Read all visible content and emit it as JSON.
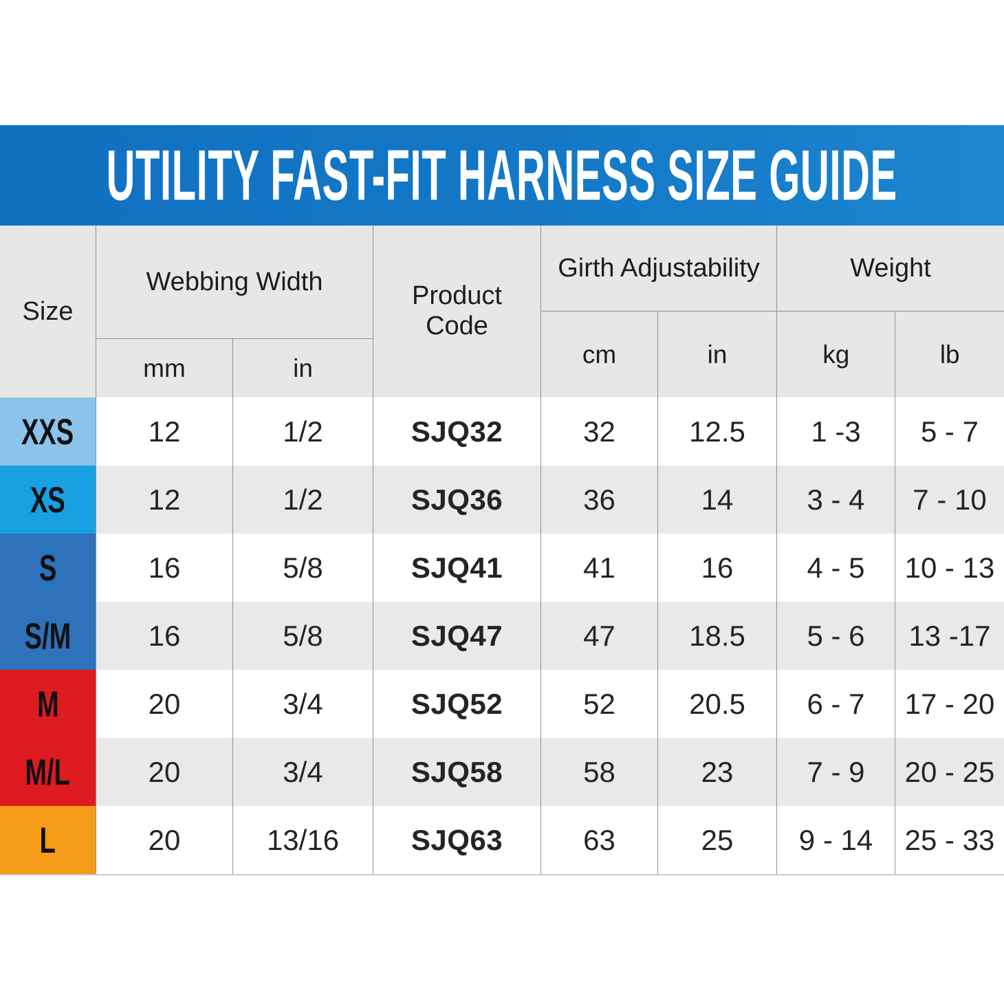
{
  "title": "UTILITY FAST-FIT HARNESS SIZE GUIDE",
  "colors": {
    "bar_gradient_left": "#1171c1",
    "bar_gradient_right": "#1c86cf",
    "size_xxs": "#8cc3ea",
    "size_xs": "#18a0e2",
    "size_s": "#2d72ba",
    "size_sm": "#2d72ba",
    "size_m": "#dd1b21",
    "size_ml": "#dd1b21",
    "size_l": "#f49c18"
  },
  "table": {
    "headers": {
      "size": "Size",
      "webbing_width": "Webbing Width",
      "product_code": "Product Code",
      "girth_adjustability": "Girth Adjustability",
      "weight": "Weight",
      "unit_mm": "mm",
      "unit_in_webbing": "in",
      "unit_cm": "cm",
      "unit_in_girth": "in",
      "unit_kg": "kg",
      "unit_lb": "lb"
    },
    "rows": [
      {
        "size": "XXS",
        "mm": "12",
        "in": "1/2",
        "code": "SJQ32",
        "cm": "32",
        "girth_in": "12.5",
        "kg": "1 -3",
        "lb": "5 - 7"
      },
      {
        "size": "XS",
        "mm": "12",
        "in": "1/2",
        "code": "SJQ36",
        "cm": "36",
        "girth_in": "14",
        "kg": "3 - 4",
        "lb": "7 - 10"
      },
      {
        "size": "S",
        "mm": "16",
        "in": "5/8",
        "code": "SJQ41",
        "cm": "41",
        "girth_in": "16",
        "kg": "4 - 5",
        "lb": "10 - 13"
      },
      {
        "size": "S/M",
        "mm": "16",
        "in": "5/8",
        "code": "SJQ47",
        "cm": "47",
        "girth_in": "18.5",
        "kg": "5 - 6",
        "lb": "13 -17"
      },
      {
        "size": "M",
        "mm": "20",
        "in": "3/4",
        "code": "SJQ52",
        "cm": "52",
        "girth_in": "20.5",
        "kg": "6 - 7",
        "lb": "17 - 20"
      },
      {
        "size": "M/L",
        "mm": "20",
        "in": "3/4",
        "code": "SJQ58",
        "cm": "58",
        "girth_in": "23",
        "kg": "7 - 9",
        "lb": "20 - 25"
      },
      {
        "size": "L",
        "mm": "20",
        "in": "13/16",
        "code": "SJQ63",
        "cm": "63",
        "girth_in": "25",
        "kg": "9 - 14",
        "lb": "25 - 33"
      }
    ]
  },
  "chart_data": {
    "type": "table",
    "title": "UTILITY FAST-FIT HARNESS SIZE GUIDE",
    "columns": [
      "Size",
      "Webbing Width mm",
      "Webbing Width in",
      "Product Code",
      "Girth Adjustability cm",
      "Girth Adjustability in",
      "Weight kg",
      "Weight lb"
    ],
    "rows": [
      [
        "XXS",
        "12",
        "1/2",
        "SJQ32",
        "32",
        "12.5",
        "1 -3",
        "5 - 7"
      ],
      [
        "XS",
        "12",
        "1/2",
        "SJQ36",
        "36",
        "14",
        "3 - 4",
        "7 - 10"
      ],
      [
        "S",
        "16",
        "5/8",
        "SJQ41",
        "41",
        "16",
        "4 - 5",
        "10 - 13"
      ],
      [
        "S/M",
        "16",
        "5/8",
        "SJQ47",
        "47",
        "18.5",
        "5 - 6",
        "13 -17"
      ],
      [
        "M",
        "20",
        "3/4",
        "SJQ52",
        "52",
        "20.5",
        "6 - 7",
        "17 - 20"
      ],
      [
        "M/L",
        "20",
        "3/4",
        "SJQ58",
        "58",
        "23",
        "7 - 9",
        "20 - 25"
      ],
      [
        "L",
        "20",
        "13/16",
        "SJQ63",
        "63",
        "25",
        "9 - 14",
        "25 - 33"
      ]
    ],
    "layout": {
      "row_label_colors": [
        "#8cc3ea",
        "#18a0e2",
        "#2d72ba",
        "#2d72ba",
        "#dd1b21",
        "#dd1b21",
        "#f49c18"
      ],
      "alternating_row_shading": true
    }
  }
}
